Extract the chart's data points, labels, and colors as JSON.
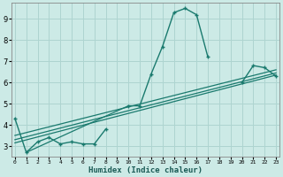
{
  "xlabel": "Humidex (Indice chaleur)",
  "ylabel": "",
  "bg_color": "#cceae6",
  "grid_color": "#aed4d0",
  "line_color": "#1a7a6e",
  "x_data": [
    0,
    1,
    2,
    3,
    4,
    5,
    6,
    7,
    8,
    9,
    10,
    11,
    12,
    13,
    14,
    15,
    16,
    17,
    18,
    19,
    20,
    21,
    22,
    23
  ],
  "y_main": [
    4.3,
    2.7,
    3.2,
    3.4,
    3.1,
    3.2,
    3.1,
    3.1,
    3.8,
    null,
    4.9,
    4.9,
    6.4,
    7.7,
    9.3,
    9.5,
    9.2,
    7.2,
    null,
    null,
    6.0,
    6.8,
    6.7,
    6.3
  ],
  "trend_lines": [
    {
      "x": [
        0,
        23
      ],
      "y": [
        3.15,
        6.35
      ]
    },
    {
      "x": [
        0,
        23
      ],
      "y": [
        3.3,
        6.45
      ]
    },
    {
      "x": [
        0,
        23
      ],
      "y": [
        3.5,
        6.6
      ]
    },
    {
      "x": [
        1,
        10
      ],
      "y": [
        2.7,
        4.9
      ]
    }
  ],
  "ylim": [
    2.5,
    9.75
  ],
  "xlim": [
    -0.3,
    23.3
  ],
  "yticks": [
    3,
    4,
    5,
    6,
    7,
    8,
    9
  ],
  "xticks": [
    0,
    1,
    2,
    3,
    4,
    5,
    6,
    7,
    8,
    9,
    10,
    11,
    12,
    13,
    14,
    15,
    16,
    17,
    18,
    19,
    20,
    21,
    22,
    23
  ],
  "xtick_labels": [
    "0",
    "1",
    "2",
    "3",
    "4",
    "5",
    "6",
    "7",
    "8",
    "9",
    "10",
    "11",
    "12",
    "13",
    "14",
    "15",
    "16",
    "17",
    "18",
    "19",
    "20",
    "21",
    "22",
    "23"
  ]
}
